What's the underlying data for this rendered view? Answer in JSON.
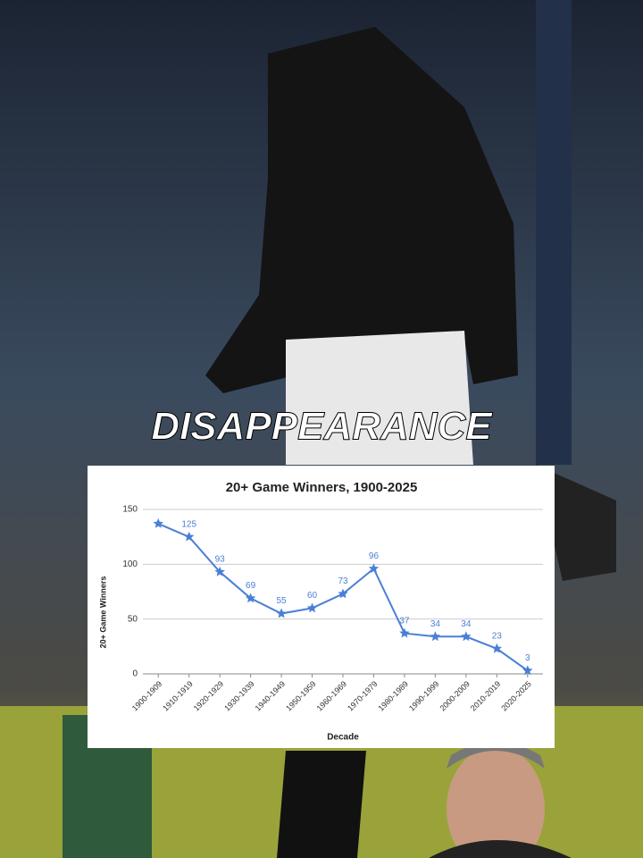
{
  "caption": "DISAPPEARANCE",
  "chart_data": {
    "type": "line",
    "title": "20+ Game Winners, 1900-2025",
    "x_label": "Decade",
    "y_label": "20+ Game Winners",
    "categories": [
      "1900-1909",
      "1910-1919",
      "1920-1929",
      "1930-1939",
      "1940-1949",
      "1950-1959",
      "1960-1969",
      "1970-1979",
      "1980-1989",
      "1990-1999",
      "2000-2009",
      "2010-2019",
      "2020-2025"
    ],
    "values": [
      137,
      125,
      93,
      69,
      55,
      60,
      73,
      96,
      37,
      34,
      34,
      23,
      3
    ],
    "value_labels": [
      null,
      "125",
      "93",
      "69",
      "55",
      "60",
      "73",
      "96",
      "37",
      "34",
      "34",
      "23",
      "3"
    ],
    "color": "#4a7fd6",
    "ylim": [
      0,
      150
    ],
    "yticks": [
      0,
      50,
      100,
      150
    ],
    "grid": true
  }
}
